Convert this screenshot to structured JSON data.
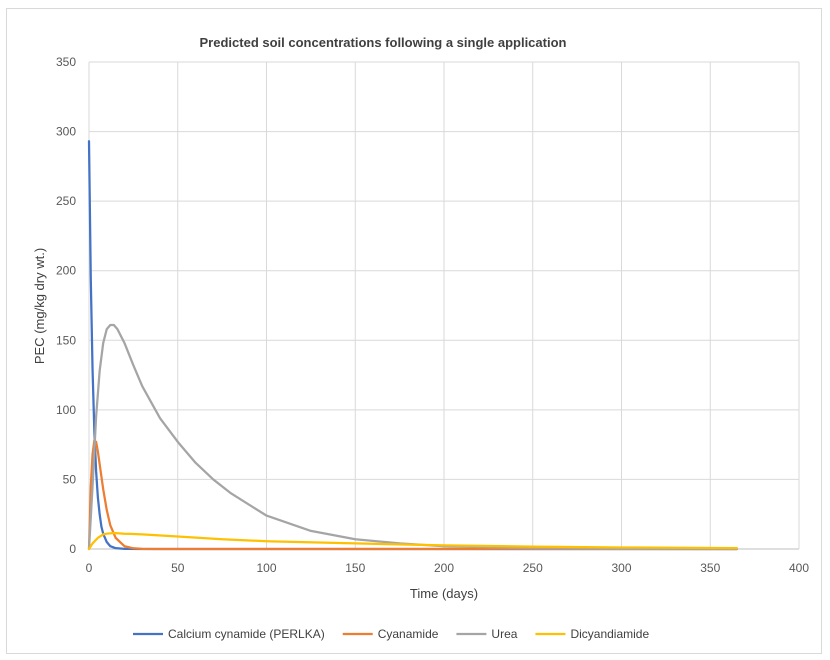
{
  "chart_data": {
    "type": "line",
    "title": "Predicted soil concentrations following a single application",
    "xlabel": "Time (days)",
    "ylabel": "PEC (mg/kg dry wt.)",
    "xlim": [
      0,
      400
    ],
    "ylim": [
      0,
      350
    ],
    "xticks": [
      0,
      50,
      100,
      150,
      200,
      250,
      300,
      350,
      400
    ],
    "yticks": [
      0,
      50,
      100,
      150,
      200,
      250,
      300,
      350
    ],
    "grid": true,
    "legend_position": "bottom",
    "series": [
      {
        "name": "Calcium cynamide (PERLKA)",
        "color": "#4472c4",
        "x": [
          0,
          1,
          2,
          3,
          4,
          5,
          6,
          7,
          8,
          10,
          12,
          15,
          20,
          30,
          50,
          100,
          200,
          300,
          365
        ],
        "y": [
          293,
          194,
          129,
          85,
          56,
          37,
          25,
          16,
          11,
          5,
          2,
          0.6,
          0.1,
          0,
          0,
          0,
          0,
          0,
          0
        ]
      },
      {
        "name": "Cyanamide",
        "color": "#ed7d31",
        "x": [
          0,
          1,
          2,
          3,
          4,
          5,
          6,
          7,
          8,
          10,
          12,
          15,
          20,
          25,
          30,
          40,
          60,
          100,
          200,
          300,
          365
        ],
        "y": [
          0,
          45,
          68,
          78,
          77,
          70,
          61,
          52,
          43,
          28,
          17,
          8,
          2,
          0.5,
          0.1,
          0,
          0,
          0,
          0,
          0,
          0
        ]
      },
      {
        "name": "Urea",
        "color": "#a5a5a5",
        "x": [
          0,
          2,
          4,
          6,
          8,
          10,
          12,
          14,
          16,
          20,
          25,
          30,
          40,
          50,
          60,
          70,
          80,
          100,
          125,
          150,
          175,
          200,
          250,
          300,
          365
        ],
        "y": [
          0,
          45,
          95,
          128,
          148,
          158,
          161,
          161,
          158,
          148,
          132,
          117,
          94,
          77,
          62,
          50,
          40,
          24,
          13,
          7,
          4,
          2,
          0.5,
          0.1,
          0
        ]
      },
      {
        "name": "Dicyandiamide",
        "color": "#ffc000",
        "x": [
          0,
          2,
          5,
          8,
          10,
          14,
          20,
          30,
          50,
          75,
          100,
          150,
          200,
          250,
          300,
          365
        ],
        "y": [
          0,
          4,
          8,
          10.5,
          11,
          11.5,
          11,
          10.5,
          9,
          7,
          5.6,
          4,
          2.6,
          1.7,
          1.1,
          0.6
        ]
      }
    ]
  }
}
